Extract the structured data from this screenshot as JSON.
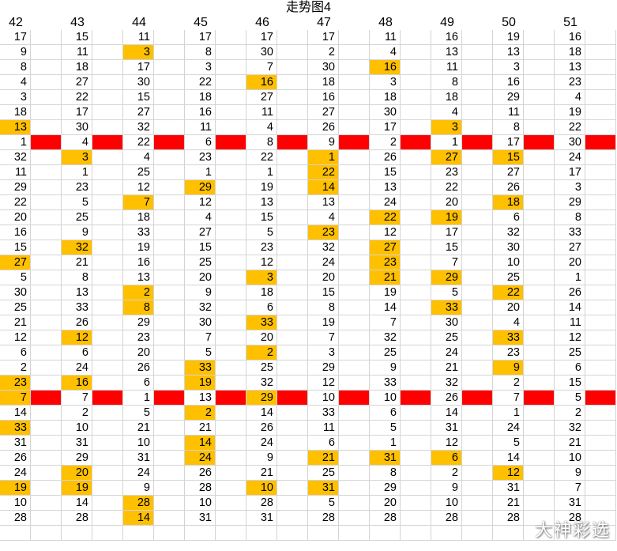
{
  "title": "走势图4",
  "columns": [
    "42",
    "43",
    "44",
    "45",
    "46",
    "47",
    "48",
    "49",
    "50",
    "51"
  ],
  "rows": [
    [
      17,
      15,
      11,
      17,
      17,
      17,
      11,
      16,
      19,
      16
    ],
    [
      9,
      11,
      3,
      8,
      30,
      2,
      4,
      13,
      13,
      18
    ],
    [
      8,
      18,
      17,
      3,
      7,
      30,
      16,
      11,
      3,
      13
    ],
    [
      4,
      27,
      30,
      22,
      16,
      18,
      3,
      8,
      16,
      23
    ],
    [
      3,
      22,
      15,
      18,
      27,
      16,
      18,
      18,
      29,
      4
    ],
    [
      18,
      17,
      27,
      16,
      11,
      27,
      30,
      4,
      11,
      19
    ],
    [
      13,
      30,
      32,
      11,
      4,
      26,
      17,
      3,
      8,
      22
    ],
    [
      1,
      4,
      22,
      6,
      8,
      9,
      2,
      1,
      17,
      30
    ],
    [
      32,
      3,
      4,
      23,
      22,
      1,
      26,
      27,
      15,
      24
    ],
    [
      11,
      1,
      25,
      1,
      1,
      22,
      15,
      23,
      27,
      17
    ],
    [
      29,
      23,
      12,
      29,
      19,
      14,
      13,
      22,
      26,
      3
    ],
    [
      22,
      5,
      7,
      12,
      13,
      13,
      24,
      20,
      18,
      29
    ],
    [
      20,
      25,
      18,
      4,
      15,
      4,
      22,
      19,
      6,
      8
    ],
    [
      16,
      9,
      33,
      27,
      5,
      23,
      12,
      17,
      32,
      33
    ],
    [
      15,
      32,
      19,
      15,
      23,
      32,
      27,
      15,
      30,
      27
    ],
    [
      27,
      21,
      16,
      25,
      12,
      24,
      23,
      7,
      10,
      20
    ],
    [
      5,
      8,
      13,
      20,
      3,
      20,
      21,
      29,
      25,
      1
    ],
    [
      30,
      13,
      2,
      9,
      18,
      15,
      19,
      5,
      22,
      26
    ],
    [
      25,
      33,
      8,
      32,
      6,
      8,
      14,
      33,
      20,
      14
    ],
    [
      21,
      26,
      29,
      30,
      33,
      19,
      7,
      30,
      4,
      11
    ],
    [
      12,
      12,
      23,
      7,
      20,
      7,
      32,
      25,
      33,
      12
    ],
    [
      6,
      6,
      20,
      5,
      2,
      3,
      25,
      24,
      23,
      25
    ],
    [
      2,
      24,
      26,
      33,
      25,
      29,
      9,
      21,
      9,
      6
    ],
    [
      23,
      16,
      6,
      19,
      32,
      12,
      33,
      32,
      2,
      15
    ],
    [
      7,
      7,
      1,
      13,
      29,
      10,
      10,
      26,
      7,
      5
    ],
    [
      14,
      2,
      5,
      2,
      14,
      33,
      6,
      14,
      1,
      2
    ],
    [
      33,
      10,
      21,
      21,
      26,
      11,
      5,
      31,
      24,
      32
    ],
    [
      31,
      31,
      10,
      14,
      24,
      6,
      1,
      12,
      5,
      21
    ],
    [
      26,
      29,
      31,
      24,
      9,
      21,
      31,
      6,
      14,
      10
    ],
    [
      24,
      20,
      24,
      26,
      21,
      25,
      8,
      2,
      12,
      9
    ],
    [
      19,
      19,
      9,
      28,
      10,
      31,
      29,
      9,
      31,
      7
    ],
    [
      10,
      14,
      28,
      10,
      28,
      5,
      20,
      10,
      21,
      31
    ],
    [
      28,
      28,
      14,
      31,
      31,
      28,
      28,
      28,
      28,
      28
    ]
  ],
  "highlights": [
    [
      1,
      2
    ],
    [
      3,
      4
    ],
    [
      2,
      6
    ],
    [
      6,
      0
    ],
    [
      6,
      7
    ],
    [
      8,
      1
    ],
    [
      8,
      5
    ],
    [
      8,
      7
    ],
    [
      8,
      8
    ],
    [
      9,
      5
    ],
    [
      10,
      3
    ],
    [
      10,
      5
    ],
    [
      11,
      2
    ],
    [
      11,
      8
    ],
    [
      12,
      6
    ],
    [
      12,
      7
    ],
    [
      13,
      5
    ],
    [
      14,
      1
    ],
    [
      14,
      6
    ],
    [
      15,
      0
    ],
    [
      15,
      6
    ],
    [
      16,
      4
    ],
    [
      16,
      6
    ],
    [
      16,
      7
    ],
    [
      17,
      2
    ],
    [
      17,
      8
    ],
    [
      18,
      2
    ],
    [
      18,
      7
    ],
    [
      19,
      4
    ],
    [
      20,
      1
    ],
    [
      20,
      8
    ],
    [
      21,
      4
    ],
    [
      22,
      3
    ],
    [
      22,
      8
    ],
    [
      23,
      0
    ],
    [
      23,
      1
    ],
    [
      23,
      3
    ],
    [
      24,
      0
    ],
    [
      24,
      4
    ],
    [
      25,
      3
    ],
    [
      26,
      0
    ],
    [
      27,
      3
    ],
    [
      28,
      3
    ],
    [
      28,
      5
    ],
    [
      28,
      6
    ],
    [
      28,
      7
    ],
    [
      29,
      1
    ],
    [
      29,
      8
    ],
    [
      30,
      0
    ],
    [
      30,
      1
    ],
    [
      30,
      4
    ],
    [
      30,
      5
    ],
    [
      31,
      2
    ],
    [
      32,
      2
    ]
  ],
  "separator_rows": [
    7,
    24
  ],
  "colors": {
    "highlight": "#ffc000",
    "separator": "#ff0000",
    "grid": "#d4d4d4"
  },
  "watermark": "大神彩选"
}
